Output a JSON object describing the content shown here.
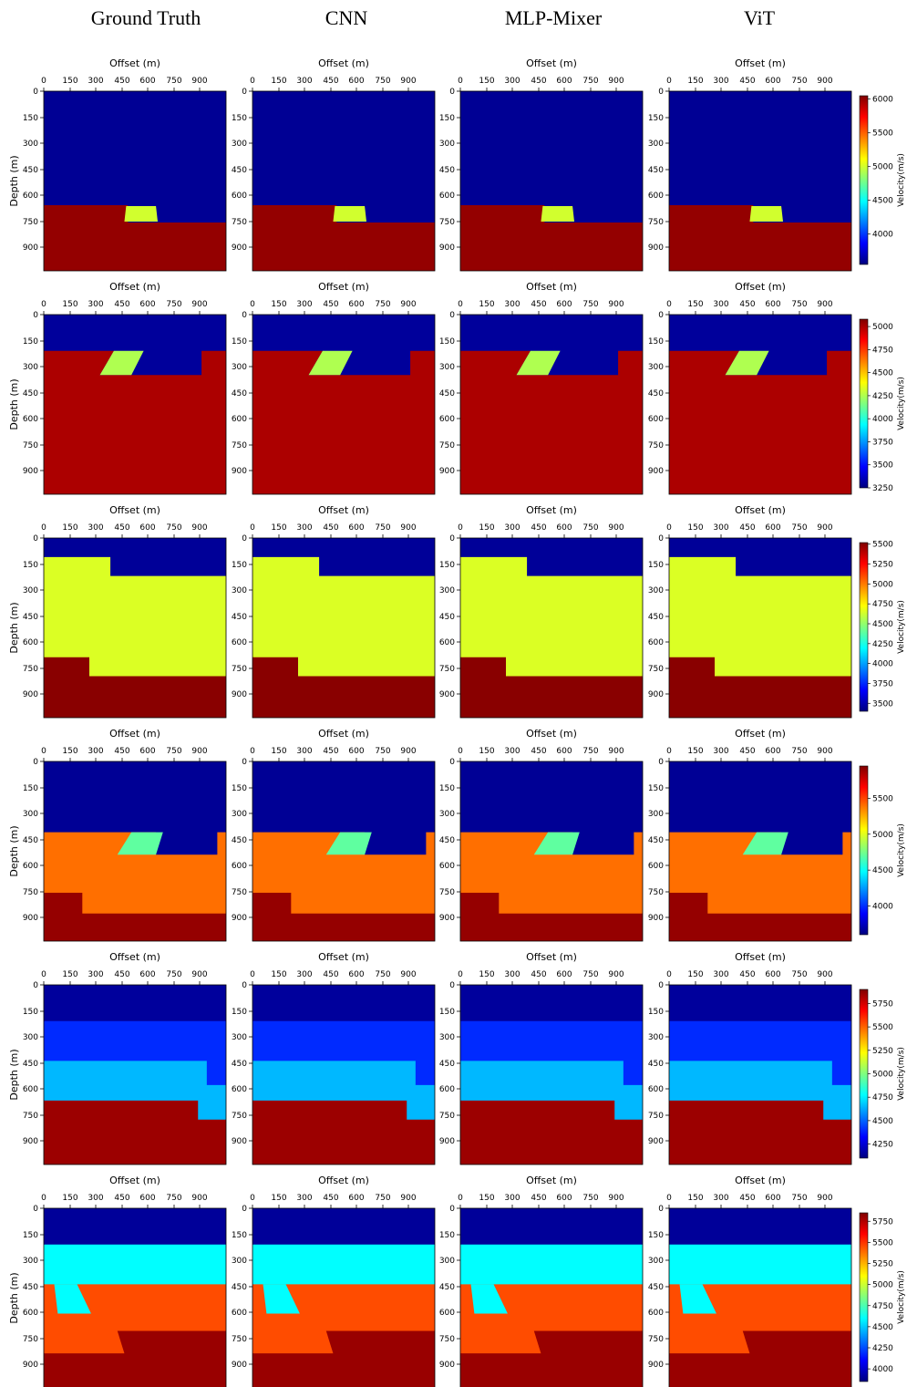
{
  "columns": [
    "Ground Truth",
    "CNN",
    "MLP-Mixer",
    "ViT"
  ],
  "axes": {
    "xlabel": "Offset (m)",
    "ylabel": "Depth (m)",
    "xticks": [
      "0",
      "150",
      "300",
      "450",
      "600",
      "750",
      "900"
    ],
    "yticks": [
      "0",
      "150",
      "300",
      "450",
      "600",
      "750",
      "900"
    ],
    "xlim": [
      0,
      1040
    ],
    "ylim": [
      0,
      1040
    ]
  },
  "colorbar": {
    "label": "Velocity(m/s)",
    "colormap": "jet"
  },
  "chart_data": [
    {
      "type": "heatmap",
      "vmin": 3550,
      "vmax": 6050,
      "ticks": [
        "4000",
        "4500",
        "5000",
        "5500",
        "6000"
      ],
      "layers": [
        {
          "v": 3600,
          "boundary": [
            [
              0,
              0
            ],
            [
              1040,
              0
            ]
          ]
        },
        {
          "v": 6000,
          "boundary": [
            [
              0,
              660
            ],
            [
              480,
              660
            ],
            [
              480,
              760
            ],
            [
              1040,
              760
            ]
          ]
        }
      ],
      "bodies": [
        {
          "v": 5000,
          "polygon": [
            [
              470,
              665
            ],
            [
              640,
              665
            ],
            [
              650,
              755
            ],
            [
              460,
              755
            ]
          ]
        }
      ]
    },
    {
      "type": "heatmap",
      "vmin": 3250,
      "vmax": 5080,
      "ticks": [
        "3250",
        "3500",
        "3750",
        "4000",
        "4250",
        "4500",
        "4750",
        "5000"
      ],
      "layers": [
        {
          "v": 3300,
          "boundary": [
            [
              0,
              0
            ],
            [
              1040,
              0
            ]
          ]
        },
        {
          "v": 5000,
          "boundary": [
            [
              0,
              210
            ],
            [
              400,
              210
            ],
            [
              320,
              350
            ],
            [
              900,
              350
            ],
            [
              900,
              210
            ],
            [
              1040,
              210
            ]
          ]
        }
      ],
      "bodies": [
        {
          "v": 4250,
          "polygon": [
            [
              400,
              210
            ],
            [
              570,
              210
            ],
            [
              500,
              350
            ],
            [
              320,
              350
            ]
          ]
        }
      ]
    },
    {
      "type": "heatmap",
      "vmin": 3400,
      "vmax": 5520,
      "ticks": [
        "3500",
        "3750",
        "4000",
        "4250",
        "4500",
        "4750",
        "5000",
        "5250",
        "5500"
      ],
      "layers": [
        {
          "v": 3450,
          "boundary": [
            [
              0,
              0
            ],
            [
              1040,
              0
            ]
          ]
        },
        {
          "v": 4650,
          "boundary": [
            [
              0,
              110
            ],
            [
              380,
              110
            ],
            [
              380,
              220
            ],
            [
              1040,
              220
            ]
          ]
        },
        {
          "v": 5500,
          "boundary": [
            [
              0,
              690
            ],
            [
              260,
              690
            ],
            [
              260,
              800
            ],
            [
              1040,
              800
            ]
          ]
        }
      ],
      "bodies": []
    },
    {
      "type": "heatmap",
      "vmin": 3600,
      "vmax": 5950,
      "ticks": [
        "4000",
        "4500",
        "5000",
        "5500"
      ],
      "layers": [
        {
          "v": 3650,
          "boundary": [
            [
              0,
              0
            ],
            [
              1040,
              0
            ]
          ]
        },
        {
          "v": 5400,
          "boundary": [
            [
              0,
              410
            ],
            [
              640,
              410
            ],
            [
              640,
              540
            ],
            [
              990,
              540
            ],
            [
              990,
              410
            ],
            [
              1040,
              410
            ]
          ]
        },
        {
          "v": 5900,
          "boundary": [
            [
              0,
              760
            ],
            [
              220,
              760
            ],
            [
              220,
              880
            ],
            [
              1040,
              880
            ]
          ]
        }
      ],
      "bodies": [
        {
          "v": 4700,
          "polygon": [
            [
              500,
              410
            ],
            [
              680,
              410
            ],
            [
              640,
              540
            ],
            [
              420,
              540
            ]
          ]
        }
      ]
    },
    {
      "type": "heatmap",
      "vmin": 4100,
      "vmax": 5900,
      "ticks": [
        "4250",
        "4500",
        "4750",
        "5000",
        "5250",
        "5500",
        "5750"
      ],
      "layers": [
        {
          "v": 4150,
          "boundary": [
            [
              0,
              0
            ],
            [
              1040,
              0
            ]
          ]
        },
        {
          "v": 4400,
          "boundary": [
            [
              0,
              210
            ],
            [
              1040,
              210
            ]
          ]
        },
        {
          "v": 4650,
          "boundary": [
            [
              0,
              440
            ],
            [
              930,
              440
            ],
            [
              930,
              580
            ],
            [
              1040,
              580
            ]
          ]
        },
        {
          "v": 5850,
          "boundary": [
            [
              0,
              670
            ],
            [
              880,
              670
            ],
            [
              880,
              780
            ],
            [
              1040,
              780
            ]
          ]
        }
      ],
      "bodies": []
    },
    {
      "type": "heatmap",
      "vmin": 3850,
      "vmax": 5850,
      "ticks": [
        "4000",
        "4250",
        "4500",
        "4750",
        "5000",
        "5250",
        "5500",
        "5750"
      ],
      "layers": [
        {
          "v": 3900,
          "boundary": [
            [
              0,
              0
            ],
            [
              1040,
              0
            ]
          ]
        },
        {
          "v": 4600,
          "boundary": [
            [
              0,
              210
            ],
            [
              1040,
              210
            ]
          ]
        },
        {
          "v": 5450,
          "boundary": [
            [
              0,
              440
            ],
            [
              1040,
              440
            ]
          ]
        },
        {
          "v": 5800,
          "boundary": [
            [
              0,
              710
            ],
            [
              1040,
              710
            ]
          ]
        }
      ],
      "bodies": [
        {
          "v": 4600,
          "polygon": [
            [
              60,
              440
            ],
            [
              190,
              440
            ],
            [
              270,
              610
            ],
            [
              80,
              610
            ]
          ]
        },
        {
          "v": 5450,
          "polygon": [
            [
              0,
              710
            ],
            [
              420,
              710
            ],
            [
              460,
              840
            ],
            [
              0,
              840
            ]
          ]
        }
      ]
    }
  ]
}
